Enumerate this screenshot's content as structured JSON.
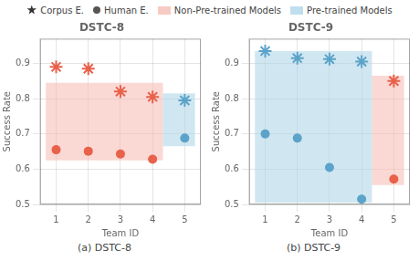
{
  "chart_data": [
    {
      "type": "scatter",
      "title": "DSTC-8",
      "subtitle": "(a) DSTC-8",
      "xlabel": "Team ID",
      "ylabel": "Success Rate",
      "xlim": [
        0.5,
        5.5
      ],
      "xticks": [
        1,
        2,
        3,
        4,
        5
      ],
      "ylim": [
        0.5,
        0.97
      ],
      "yticks": [
        0.5,
        0.6,
        0.7,
        0.8,
        0.9
      ],
      "grid": true,
      "legend": "top",
      "series": [
        {
          "name": "Corpus E.",
          "type": "scatter",
          "marker": "star",
          "color": "#333333",
          "x": [
            1,
            2,
            3,
            4,
            5
          ],
          "values": [
            0.89,
            0.885,
            0.82,
            0.805,
            0.795
          ],
          "colors": [
            "#e8614a",
            "#e8614a",
            "#e8614a",
            "#e8614a",
            "#5ba3c9"
          ]
        },
        {
          "name": "Human E.",
          "type": "scatter",
          "marker": "circle",
          "color": "#555555",
          "x": [
            1,
            2,
            3,
            4,
            5
          ],
          "values": [
            0.655,
            0.651,
            0.643,
            0.628,
            0.688
          ],
          "colors": [
            "#e8614a",
            "#e8614a",
            "#e8614a",
            "#e8614a",
            "#5ba3c9"
          ]
        },
        {
          "name": "Non-Pre-trained Models",
          "type": "rect",
          "color": "#f5b8b0",
          "x": [
            0.68,
            4.32
          ],
          "y": [
            0.625,
            0.845
          ]
        },
        {
          "name": "Pre-trained Models",
          "type": "rect",
          "color": "#aad4e8",
          "x": [
            4.32,
            5.32
          ],
          "y": [
            0.665,
            0.815
          ]
        }
      ]
    },
    {
      "type": "scatter",
      "title": "DSTC-9",
      "subtitle": "(b) DSTC-9",
      "xlabel": "Team ID",
      "ylabel": "Success Rate",
      "xlim": [
        0.5,
        5.5
      ],
      "xticks": [
        1,
        2,
        3,
        4,
        5
      ],
      "ylim": [
        0.5,
        0.97
      ],
      "yticks": [
        0.5,
        0.6,
        0.7,
        0.8,
        0.9
      ],
      "grid": true,
      "legend": "top",
      "series": [
        {
          "name": "Corpus E.",
          "type": "scatter",
          "marker": "star",
          "color": "#333333",
          "x": [
            1,
            2,
            3,
            4,
            5
          ],
          "values": [
            0.935,
            0.915,
            0.912,
            0.905,
            0.85
          ],
          "colors": [
            "#5ba3c9",
            "#5ba3c9",
            "#5ba3c9",
            "#5ba3c9",
            "#e8614a"
          ]
        },
        {
          "name": "Human E.",
          "type": "scatter",
          "marker": "circle",
          "color": "#555555",
          "x": [
            1,
            2,
            3,
            4,
            5
          ],
          "values": [
            0.7,
            0.688,
            0.605,
            0.515,
            0.572
          ],
          "colors": [
            "#5ba3c9",
            "#5ba3c9",
            "#5ba3c9",
            "#5ba3c9",
            "#e8614a"
          ]
        },
        {
          "name": "Non-Pre-trained Models",
          "type": "rect",
          "color": "#f5b8b0",
          "x": [
            4.32,
            5.32
          ],
          "y": [
            0.555,
            0.865
          ]
        },
        {
          "name": "Pre-trained Models",
          "type": "rect",
          "color": "#aad4e8",
          "x": [
            0.68,
            4.32
          ],
          "y": [
            0.505,
            0.935
          ]
        }
      ]
    }
  ]
}
